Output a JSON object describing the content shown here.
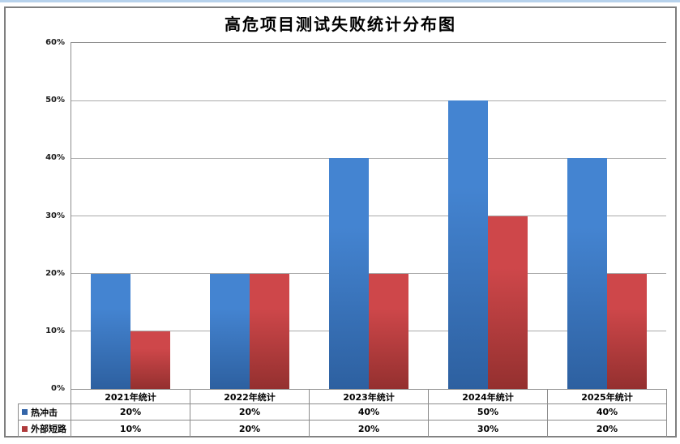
{
  "title": "高危项目测试失败统计分布图",
  "chart_data": {
    "type": "bar",
    "title": "高危项目测试失败统计分布图",
    "categories": [
      "2021年统计",
      "2022年统计",
      "2023年统计",
      "2024年统计",
      "2025年统计"
    ],
    "series": [
      {
        "name": "热冲击",
        "values": [
          20,
          20,
          40,
          50,
          40
        ],
        "labels": [
          "20%",
          "20%",
          "40%",
          "50%",
          "40%"
        ],
        "gradient_top": "#4484D1",
        "gradient_bottom": "#2D60A0",
        "legend_color": "#3465A8"
      },
      {
        "name": "外部短路",
        "values": [
          10,
          20,
          20,
          30,
          20
        ],
        "labels": [
          "10%",
          "20%",
          "20%",
          "30%",
          "20%"
        ],
        "gradient_top": "#CE474A",
        "gradient_bottom": "#94302F",
        "legend_color": "#AF3A3C"
      }
    ],
    "xlabel": "",
    "ylabel": "",
    "ylim": [
      0,
      60
    ],
    "ytick_labels": [
      "0%",
      "10%",
      "20%",
      "30%",
      "40%",
      "50%",
      "60%"
    ],
    "grid": true,
    "legend_position": "table-left"
  },
  "colors": {
    "gridline": "#A9A9A9",
    "axis_border": "#8C8C8C",
    "frame_border": "#7F7F7F",
    "top_strip": "#B7D2EC",
    "background": "#FFFFFF",
    "text": "#000000"
  }
}
